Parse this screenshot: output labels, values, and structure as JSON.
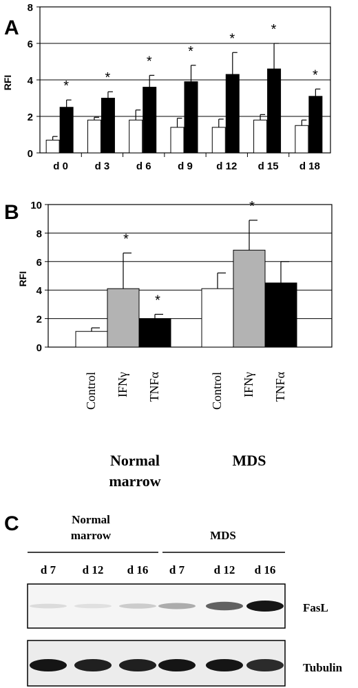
{
  "panels": {
    "a": "A",
    "b": "B",
    "c": "C"
  },
  "colors": {
    "open": "#ffffff",
    "filled": "#000000",
    "gray": "#b3b3b3",
    "band": "#111111"
  },
  "chart_data": [
    {
      "type": "bar",
      "panel": "A",
      "ylabel": "RFI",
      "ylim": [
        0,
        8
      ],
      "yticks": [
        0,
        2,
        4,
        6,
        8
      ],
      "grid": true,
      "categories": [
        "d 0",
        "d 3",
        "d 6",
        "d 9",
        "d 12",
        "d 15",
        "d 18"
      ],
      "series": [
        {
          "color": "#ffffff",
          "values": [
            0.7,
            1.8,
            1.8,
            1.4,
            1.4,
            1.8,
            1.5
          ],
          "errors": [
            0.2,
            0.15,
            0.55,
            0.5,
            0.45,
            0.3,
            0.3
          ]
        },
        {
          "color": "#000000",
          "values": [
            2.5,
            3.0,
            3.6,
            3.9,
            4.3,
            4.6,
            3.1
          ],
          "errors": [
            0.4,
            0.35,
            0.65,
            0.9,
            1.2,
            1.4,
            0.4
          ]
        }
      ],
      "significance_mark": "*",
      "significant": [
        true,
        true,
        true,
        true,
        true,
        true,
        true
      ]
    },
    {
      "type": "bar",
      "panel": "B",
      "ylabel": "RFI",
      "ylim": [
        0,
        10
      ],
      "yticks": [
        0,
        2,
        4,
        6,
        8,
        10
      ],
      "grid": true,
      "groups": [
        {
          "name_line1": "Normal",
          "name_line2": "marrow",
          "bars": [
            {
              "label": "Control",
              "value": 1.1,
              "error": 0.25,
              "color": "#ffffff",
              "significant": false
            },
            {
              "label": "IFNγ",
              "value": 4.1,
              "error": 2.5,
              "color": "#b3b3b3",
              "significant": true
            },
            {
              "label": "TNFα",
              "value": 2.0,
              "error": 0.3,
              "color": "#000000",
              "significant": true
            }
          ]
        },
        {
          "name_line1": "MDS",
          "name_line2": "",
          "bars": [
            {
              "label": "Control",
              "value": 4.1,
              "error": 1.1,
              "color": "#ffffff",
              "significant": false
            },
            {
              "label": "IFNγ",
              "value": 6.8,
              "error": 2.1,
              "color": "#b3b3b3",
              "significant": true
            },
            {
              "label": "TNFα",
              "value": 4.5,
              "error": 1.5,
              "color": "#000000",
              "significant": false
            }
          ]
        }
      ],
      "significance_mark": "*"
    }
  ],
  "blot": {
    "group_labels": [
      {
        "line1": "Normal",
        "line2": "marrow"
      },
      {
        "line1": "MDS",
        "line2": ""
      }
    ],
    "lanes": [
      "d 7",
      "d 12",
      "d 16",
      "d 7",
      "d 12",
      "d 16"
    ],
    "rows": [
      {
        "label": "FasL",
        "intensity": [
          0.08,
          0.06,
          0.15,
          0.3,
          0.65,
          1.0
        ]
      },
      {
        "label": "Tubulin",
        "intensity": [
          1.0,
          0.95,
          0.95,
          1.0,
          1.0,
          0.9
        ]
      }
    ]
  }
}
